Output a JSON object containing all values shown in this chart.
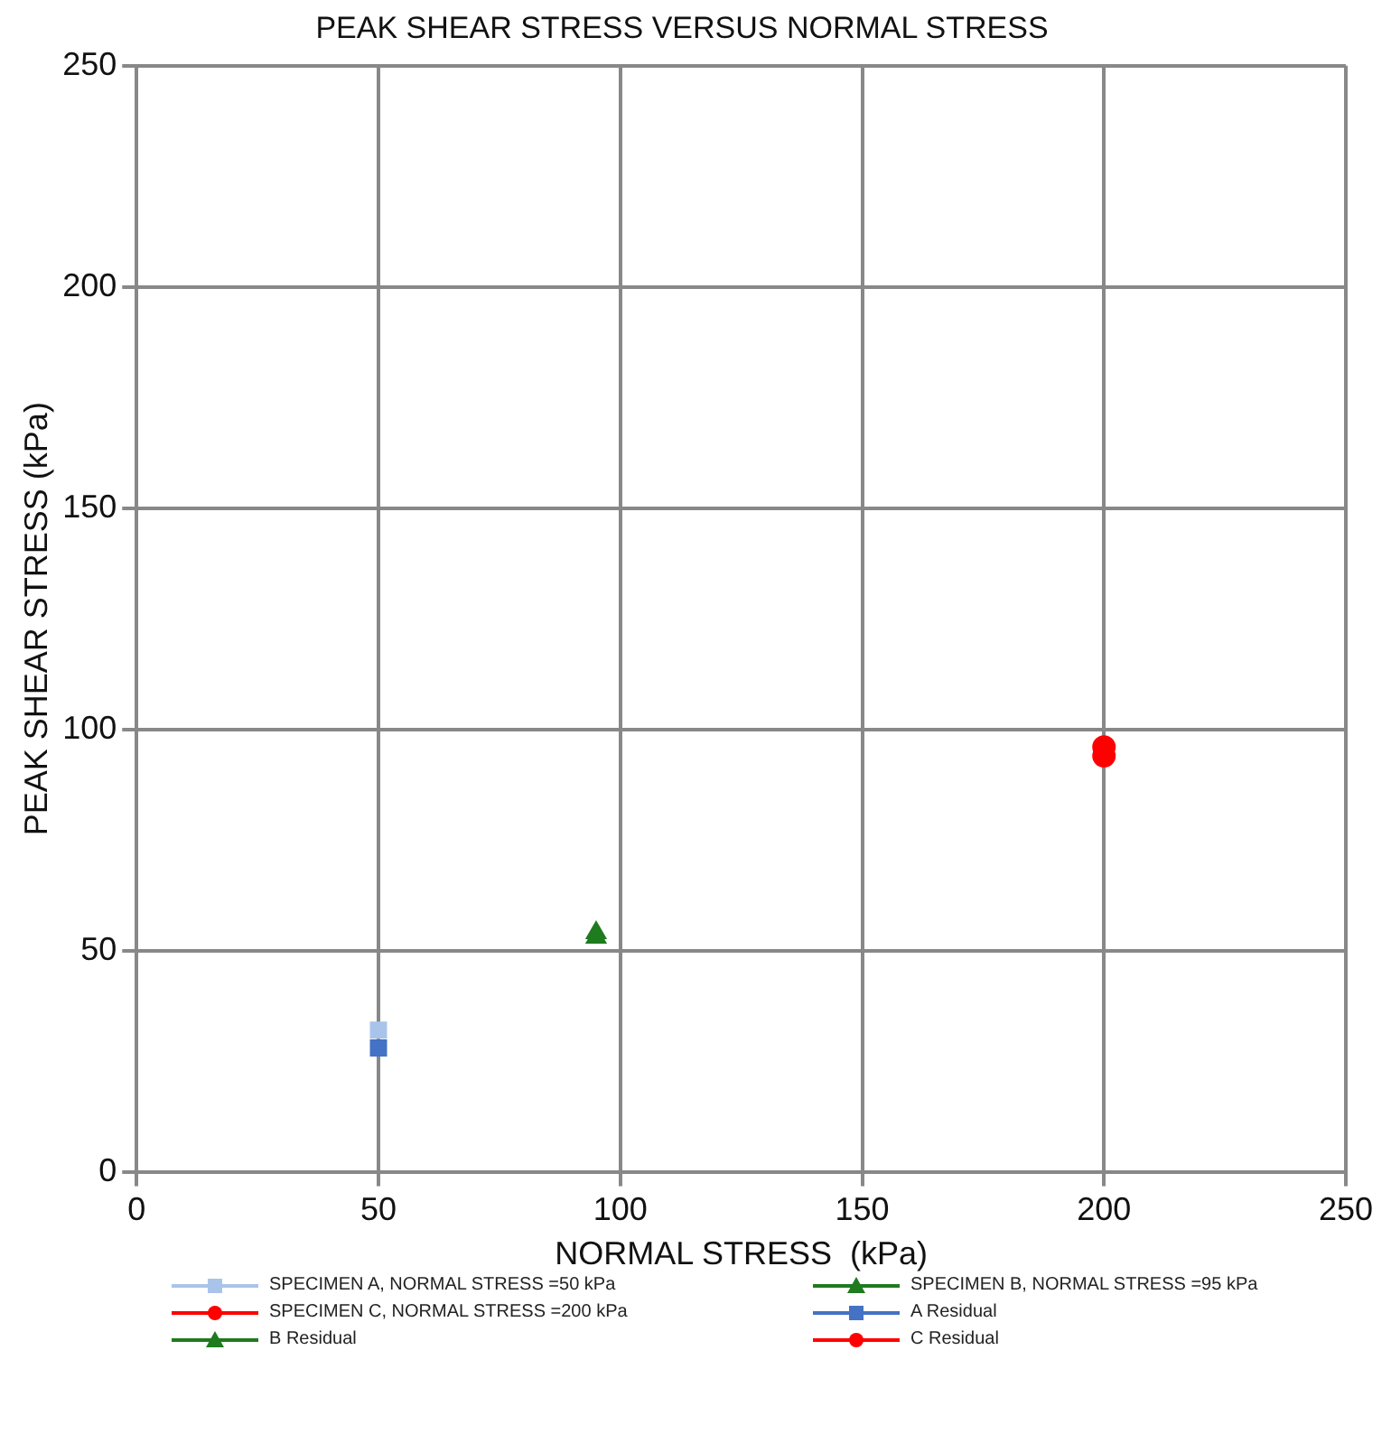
{
  "chart_data": {
    "type": "scatter",
    "title": "PEAK SHEAR STRESS VERSUS NORMAL STRESS",
    "xlabel": "NORMAL STRESS  (kPa)",
    "ylabel": "PEAK SHEAR STRESS (kPa)",
    "xlim": [
      0,
      250
    ],
    "ylim": [
      0,
      250
    ],
    "xticks": [
      0,
      50,
      100,
      150,
      200,
      250
    ],
    "yticks": [
      0,
      50,
      100,
      150,
      200,
      250
    ],
    "grid": true,
    "legend": "bottom",
    "series": [
      {
        "name": "SPECIMEN A, NORMAL STRESS =50  kPa",
        "color": "#a9c4eb",
        "marker": "square",
        "x": [
          50
        ],
        "values": [
          32
        ]
      },
      {
        "name": "SPECIMEN B, NORMAL STRESS =95  kPa",
        "color": "#1e7b1e",
        "marker": "triangle",
        "x": [
          95
        ],
        "values": [
          54
        ]
      },
      {
        "name": "SPECIMEN C, NORMAL STRESS =200  kPa",
        "color": "#ff0000",
        "marker": "circle",
        "x": [
          200
        ],
        "values": [
          96
        ]
      },
      {
        "name": "A Residual",
        "color": "#4472c4",
        "marker": "square",
        "x": [
          50
        ],
        "values": [
          28
        ]
      },
      {
        "name": "B Residual",
        "color": "#1e7b1e",
        "marker": "triangle",
        "x": [
          95
        ],
        "values": [
          53
        ]
      },
      {
        "name": "C Residual",
        "color": "#ff0000",
        "marker": "circle",
        "x": [
          200
        ],
        "values": [
          94
        ]
      }
    ]
  }
}
